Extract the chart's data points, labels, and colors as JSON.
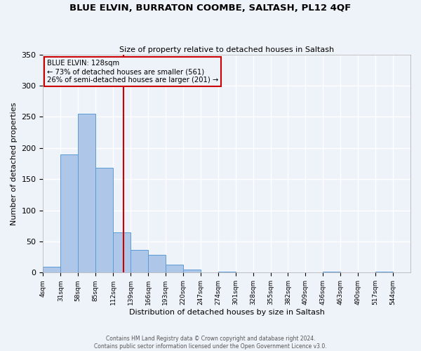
{
  "title": "BLUE ELVIN, BURRATON COOMBE, SALTASH, PL12 4QF",
  "subtitle": "Size of property relative to detached houses in Saltash",
  "xlabel": "Distribution of detached houses by size in Saltash",
  "ylabel": "Number of detached properties",
  "bar_color": "#aec6e8",
  "bar_edge_color": "#5b9bd5",
  "background_color": "#eef2f9",
  "grid_color": "#ffffff",
  "annotation_box_color": "#cc0000",
  "vline_color": "#cc0000",
  "vline_x": 128,
  "annotation_title": "BLUE ELVIN: 128sqm",
  "annotation_line1": "← 73% of detached houses are smaller (561)",
  "annotation_line2": "26% of semi-detached houses are larger (201) →",
  "bin_edges": [
    4,
    31,
    58,
    85,
    112,
    139,
    166,
    193,
    220,
    247,
    274,
    301,
    328,
    355,
    382,
    409,
    436,
    463,
    490,
    517,
    544
  ],
  "bar_heights": [
    9,
    190,
    255,
    168,
    65,
    37,
    28,
    13,
    5,
    0,
    2,
    0,
    0,
    0,
    0,
    0,
    1,
    0,
    0,
    1
  ],
  "ylim": [
    0,
    350
  ],
  "yticks": [
    0,
    50,
    100,
    150,
    200,
    250,
    300,
    350
  ],
  "footnote1": "Contains HM Land Registry data © Crown copyright and database right 2024.",
  "footnote2": "Contains public sector information licensed under the Open Government Licence v3.0."
}
